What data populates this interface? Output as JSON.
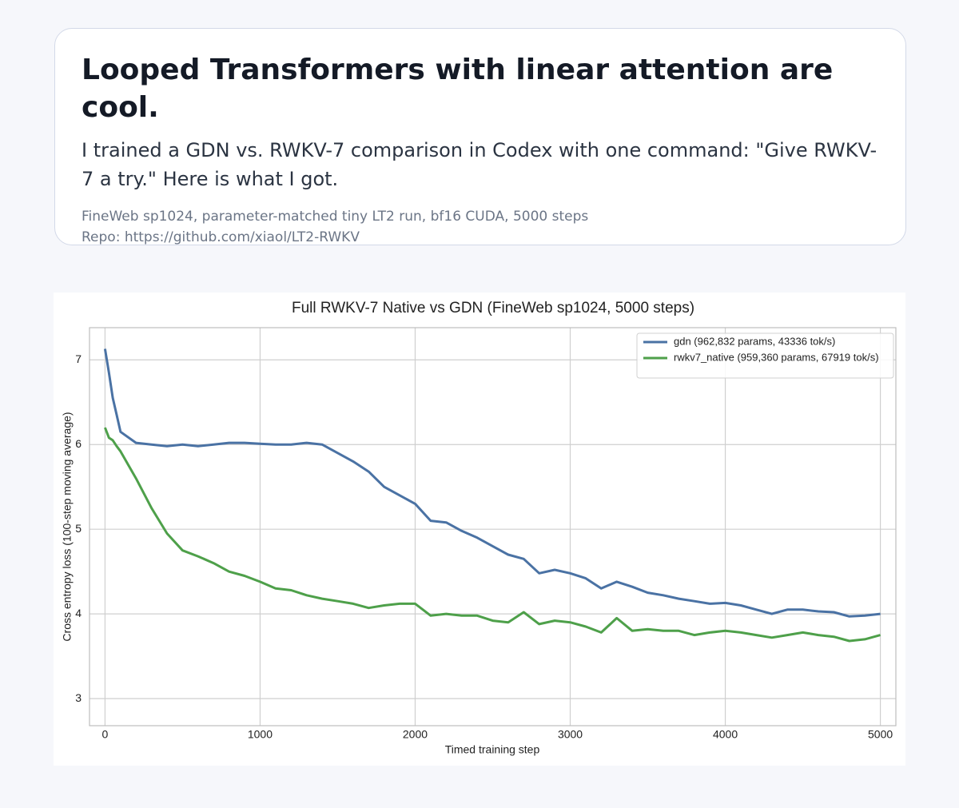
{
  "header": {
    "title": "Looped Transformers with linear attention are cool.",
    "subtitle": "I trained a GDN vs. RWKV-7 comparison in Codex with one command: \"Give RWKV-7 a try.\" Here is what I got.",
    "meta": [
      "FineWeb sp1024, parameter-matched tiny LT2 run, bf16 CUDA, 5000 steps",
      "Repo: https://github.com/xiaol/LT2-RWKV"
    ]
  },
  "chart_data": {
    "type": "line",
    "title": "Full RWKV-7 Native vs GDN (FineWeb sp1024, 5000 steps)",
    "xlabel": "Timed training step",
    "ylabel": "Cross entropy loss (100-step moving average)",
    "x": [
      0,
      25,
      50,
      75,
      100,
      200,
      300,
      400,
      500,
      600,
      700,
      800,
      900,
      1000,
      1100,
      1200,
      1300,
      1400,
      1500,
      1600,
      1700,
      1800,
      1900,
      2000,
      2100,
      2200,
      2300,
      2400,
      2500,
      2600,
      2700,
      2800,
      2900,
      3000,
      3100,
      3200,
      3300,
      3400,
      3500,
      3600,
      3700,
      3800,
      3900,
      4000,
      4100,
      4200,
      4300,
      4400,
      4500,
      4600,
      4700,
      4800,
      4900,
      5000
    ],
    "series": [
      {
        "name": "gdn (962,832 params, 43336 tok/s)",
        "color": "#4a72a4",
        "values": [
          7.13,
          6.85,
          6.55,
          6.35,
          6.15,
          6.02,
          6.0,
          5.98,
          6.0,
          5.98,
          6.0,
          6.02,
          6.02,
          6.01,
          6.0,
          6.0,
          6.02,
          6.0,
          5.9,
          5.8,
          5.68,
          5.5,
          5.4,
          5.3,
          5.1,
          5.08,
          4.98,
          4.9,
          4.8,
          4.7,
          4.65,
          4.48,
          4.52,
          4.48,
          4.42,
          4.3,
          4.38,
          4.32,
          4.25,
          4.22,
          4.18,
          4.15,
          4.12,
          4.13,
          4.1,
          4.05,
          4.0,
          4.05,
          4.05,
          4.03,
          4.02,
          3.97,
          3.98,
          4.0
        ]
      },
      {
        "name": "rwkv7_native (959,360 params, 67919 tok/s)",
        "color": "#4ea04a",
        "values": [
          6.2,
          6.08,
          6.05,
          5.98,
          5.92,
          5.6,
          5.25,
          4.95,
          4.75,
          4.68,
          4.6,
          4.5,
          4.45,
          4.38,
          4.3,
          4.28,
          4.22,
          4.18,
          4.15,
          4.12,
          4.07,
          4.1,
          4.12,
          4.12,
          3.98,
          4.0,
          3.98,
          3.98,
          3.92,
          3.9,
          4.02,
          3.88,
          3.92,
          3.9,
          3.85,
          3.78,
          3.95,
          3.8,
          3.82,
          3.8,
          3.8,
          3.75,
          3.78,
          3.8,
          3.78,
          3.75,
          3.72,
          3.75,
          3.78,
          3.75,
          3.73,
          3.68,
          3.7,
          3.75
        ]
      }
    ],
    "xlim": [
      -100,
      5100
    ],
    "xticks": [
      0,
      1000,
      2000,
      3000,
      4000,
      5000
    ],
    "ylim": [
      2.68,
      7.38
    ],
    "yticks": [
      3,
      4,
      5,
      6,
      7
    ],
    "grid": true,
    "legend": "upper right"
  }
}
